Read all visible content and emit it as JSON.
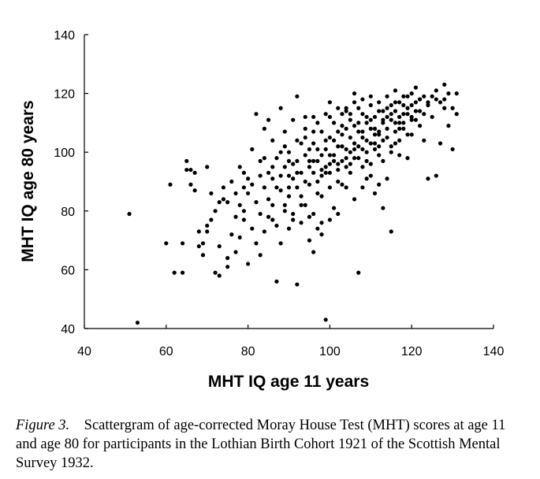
{
  "chart_data": {
    "type": "scatter",
    "title": "",
    "xlabel": "MHT IQ age 11 years",
    "ylabel": "MHT IQ age 80 years",
    "xlim": [
      40,
      140
    ],
    "ylim": [
      40,
      140
    ],
    "xticks": [
      40,
      60,
      80,
      100,
      120,
      140
    ],
    "yticks": [
      40,
      60,
      80,
      100,
      120,
      140
    ],
    "grid": false,
    "points": [
      [
        51,
        79
      ],
      [
        53,
        42
      ],
      [
        60,
        69
      ],
      [
        61,
        89
      ],
      [
        62,
        59
      ],
      [
        64,
        59
      ],
      [
        64,
        69
      ],
      [
        65,
        94
      ],
      [
        65,
        97
      ],
      [
        66,
        89
      ],
      [
        66,
        94
      ],
      [
        67,
        87
      ],
      [
        67,
        93
      ],
      [
        68,
        73
      ],
      [
        69,
        65
      ],
      [
        69,
        69
      ],
      [
        70,
        75
      ],
      [
        70,
        95
      ],
      [
        71,
        77
      ],
      [
        72,
        80
      ],
      [
        72,
        59
      ],
      [
        73,
        58
      ],
      [
        73,
        68
      ],
      [
        74,
        84
      ],
      [
        74,
        88
      ],
      [
        75,
        64
      ],
      [
        75,
        61
      ],
      [
        76,
        72
      ],
      [
        77,
        86
      ],
      [
        77,
        78
      ],
      [
        78,
        71
      ],
      [
        78,
        95
      ],
      [
        79,
        93
      ],
      [
        79,
        80
      ],
      [
        80,
        62
      ],
      [
        80,
        86
      ],
      [
        81,
        101
      ],
      [
        81,
        89
      ],
      [
        82,
        69
      ],
      [
        82,
        113
      ],
      [
        83,
        79
      ],
      [
        83,
        92
      ],
      [
        84,
        108
      ],
      [
        84,
        73
      ],
      [
        85,
        84
      ],
      [
        85,
        111
      ],
      [
        86,
        91
      ],
      [
        86,
        77
      ],
      [
        86,
        104
      ],
      [
        87,
        56
      ],
      [
        87,
        98
      ],
      [
        87,
        75
      ],
      [
        88,
        115
      ],
      [
        88,
        87
      ],
      [
        88,
        69
      ],
      [
        89,
        95
      ],
      [
        89,
        82
      ],
      [
        89,
        107
      ],
      [
        90,
        92
      ],
      [
        90,
        74
      ],
      [
        90,
        100
      ],
      [
        90,
        85
      ],
      [
        91,
        111
      ],
      [
        91,
        96
      ],
      [
        91,
        79
      ],
      [
        92,
        55
      ],
      [
        92,
        88
      ],
      [
        92,
        119
      ],
      [
        93,
        93
      ],
      [
        93,
        103
      ],
      [
        93,
        76
      ],
      [
        94,
        99
      ],
      [
        94,
        82
      ],
      [
        94,
        112
      ],
      [
        95,
        89
      ],
      [
        95,
        95
      ],
      [
        95,
        70
      ],
      [
        96,
        79
      ],
      [
        96,
        103
      ],
      [
        96,
        107
      ],
      [
        97,
        90
      ],
      [
        97,
        97
      ],
      [
        97,
        110
      ],
      [
        98,
        85
      ],
      [
        98,
        94
      ],
      [
        98,
        76
      ],
      [
        99,
        43
      ],
      [
        99,
        101
      ],
      [
        99,
        93
      ],
      [
        99,
        113
      ],
      [
        100,
        96
      ],
      [
        100,
        88
      ],
      [
        100,
        105
      ],
      [
        100,
        117
      ],
      [
        101,
        110
      ],
      [
        101,
        81
      ],
      [
        101,
        99
      ],
      [
        102,
        94
      ],
      [
        102,
        107
      ],
      [
        102,
        102
      ],
      [
        103,
        113
      ],
      [
        103,
        89
      ],
      [
        103,
        97
      ],
      [
        104,
        108
      ],
      [
        104,
        101
      ],
      [
        104,
        115
      ],
      [
        105,
        93
      ],
      [
        105,
        105
      ],
      [
        105,
        111
      ],
      [
        106,
        103
      ],
      [
        106,
        98
      ],
      [
        106,
        117
      ],
      [
        107,
        59
      ],
      [
        107,
        107
      ],
      [
        107,
        110
      ],
      [
        108,
        95
      ],
      [
        108,
        101
      ],
      [
        108,
        113
      ],
      [
        109,
        104
      ],
      [
        109,
        91
      ],
      [
        109,
        110
      ],
      [
        110,
        108
      ],
      [
        110,
        96
      ],
      [
        110,
        119
      ],
      [
        111,
        103
      ],
      [
        111,
        112
      ],
      [
        111,
        86
      ],
      [
        112,
        107
      ],
      [
        112,
        99
      ],
      [
        112,
        117
      ],
      [
        113,
        110
      ],
      [
        113,
        81
      ],
      [
        113,
        114
      ],
      [
        114,
        105
      ],
      [
        114,
        91
      ],
      [
        114,
        119
      ],
      [
        115,
        111
      ],
      [
        115,
        73
      ],
      [
        115,
        102
      ],
      [
        116,
        114
      ],
      [
        116,
        107
      ],
      [
        116,
        121
      ],
      [
        117,
        104
      ],
      [
        117,
        110
      ],
      [
        117,
        117
      ],
      [
        118,
        113
      ],
      [
        118,
        108
      ],
      [
        119,
        115
      ],
      [
        119,
        98
      ],
      [
        119,
        119
      ],
      [
        120,
        112
      ],
      [
        120,
        106
      ],
      [
        121,
        117
      ],
      [
        121,
        122
      ],
      [
        122,
        109
      ],
      [
        122,
        114
      ],
      [
        123,
        119
      ],
      [
        123,
        104
      ],
      [
        124,
        91
      ],
      [
        124,
        116
      ],
      [
        125,
        119
      ],
      [
        125,
        112
      ],
      [
        126,
        92
      ],
      [
        126,
        121
      ],
      [
        127,
        117
      ],
      [
        127,
        103
      ],
      [
        128,
        123
      ],
      [
        128,
        115
      ],
      [
        129,
        109
      ],
      [
        129,
        120
      ],
      [
        130,
        101
      ],
      [
        130,
        115
      ],
      [
        131,
        113
      ],
      [
        131,
        120
      ],
      [
        88,
        100
      ],
      [
        89,
        102
      ],
      [
        90,
        88
      ],
      [
        91,
        91
      ],
      [
        92,
        97
      ],
      [
        93,
        85
      ],
      [
        94,
        105
      ],
      [
        95,
        101
      ],
      [
        96,
        93
      ],
      [
        97,
        86
      ],
      [
        98,
        99
      ],
      [
        99,
        95
      ],
      [
        100,
        99
      ],
      [
        101,
        104
      ],
      [
        102,
        90
      ],
      [
        103,
        106
      ],
      [
        104,
        95
      ],
      [
        105,
        100
      ],
      [
        106,
        109
      ],
      [
        107,
        98
      ],
      [
        108,
        105
      ],
      [
        109,
        97
      ],
      [
        110,
        111
      ],
      [
        111,
        106
      ],
      [
        112,
        102
      ],
      [
        113,
        97
      ],
      [
        114,
        112
      ],
      [
        115,
        116
      ],
      [
        116,
        110
      ],
      [
        117,
        112
      ],
      [
        118,
        116
      ],
      [
        119,
        106
      ],
      [
        120,
        116
      ],
      [
        121,
        111
      ],
      [
        122,
        118
      ],
      [
        123,
        113
      ],
      [
        78,
        82
      ],
      [
        79,
        88
      ],
      [
        80,
        91
      ],
      [
        82,
        83
      ],
      [
        83,
        97
      ],
      [
        84,
        88
      ],
      [
        85,
        93
      ],
      [
        86,
        82
      ],
      [
        76,
        90
      ],
      [
        75,
        83
      ],
      [
        73,
        83
      ],
      [
        71,
        86
      ],
      [
        70,
        73
      ],
      [
        68,
        68
      ],
      [
        77,
        66
      ],
      [
        79,
        77
      ],
      [
        81,
        74
      ],
      [
        83,
        65
      ],
      [
        96,
        66
      ],
      [
        98,
        72
      ],
      [
        100,
        77
      ],
      [
        102,
        79
      ],
      [
        104,
        88
      ],
      [
        106,
        84
      ],
      [
        108,
        88
      ],
      [
        110,
        92
      ],
      [
        112,
        89
      ],
      [
        92,
        104
      ],
      [
        94,
        108
      ],
      [
        96,
        112
      ],
      [
        98,
        107
      ],
      [
        100,
        112
      ],
      [
        102,
        115
      ],
      [
        104,
        114
      ],
      [
        106,
        120
      ],
      [
        108,
        118
      ],
      [
        110,
        116
      ],
      [
        112,
        114
      ],
      [
        114,
        115
      ],
      [
        116,
        117
      ],
      [
        118,
        119
      ],
      [
        120,
        120
      ],
      [
        122,
        118
      ],
      [
        124,
        117
      ],
      [
        126,
        118
      ],
      [
        128,
        118
      ],
      [
        95,
        97
      ],
      [
        97,
        101
      ],
      [
        99,
        104
      ],
      [
        101,
        97
      ],
      [
        103,
        102
      ],
      [
        105,
        96
      ],
      [
        107,
        102
      ],
      [
        109,
        100
      ],
      [
        111,
        101
      ],
      [
        113,
        104
      ],
      [
        115,
        100
      ],
      [
        117,
        99
      ],
      [
        93,
        82
      ],
      [
        95,
        78
      ],
      [
        97,
        74
      ],
      [
        91,
        77
      ],
      [
        89,
        80
      ],
      [
        87,
        88
      ],
      [
        85,
        78
      ],
      [
        84,
        98
      ],
      [
        86,
        95
      ],
      [
        88,
        92
      ],
      [
        90,
        97
      ],
      [
        92,
        93
      ],
      [
        94,
        90
      ],
      [
        96,
        97
      ],
      [
        98,
        92
      ],
      [
        100,
        93
      ],
      [
        102,
        96
      ],
      [
        104,
        98
      ],
      [
        106,
        101
      ],
      [
        108,
        107
      ],
      [
        110,
        103
      ],
      [
        112,
        106
      ],
      [
        114,
        108
      ],
      [
        116,
        103
      ],
      [
        118,
        110
      ],
      [
        120,
        111
      ],
      [
        103,
        109
      ],
      [
        105,
        113
      ],
      [
        107,
        115
      ],
      [
        109,
        112
      ],
      [
        111,
        108
      ],
      [
        113,
        111
      ],
      [
        115,
        113
      ],
      [
        117,
        108
      ],
      [
        119,
        113
      ],
      [
        121,
        114
      ]
    ]
  },
  "caption": {
    "label": "Figure 3.",
    "text": "Scattergram of age-corrected Moray House Test (MHT) scores at age 11 and age 80 for participants in the Lothian Birth Cohort 1921 of the Scottish Mental Survey 1932."
  }
}
